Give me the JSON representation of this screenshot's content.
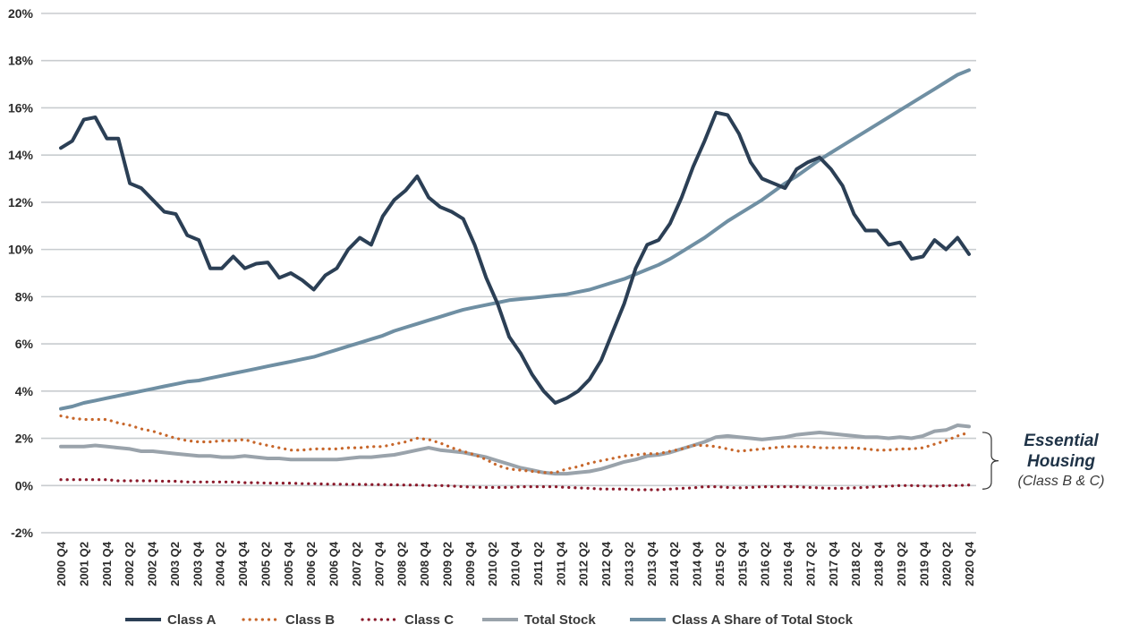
{
  "chart_data": {
    "type": "line",
    "title": "",
    "xlabel": "",
    "ylabel": "",
    "ylim": [
      -2,
      20
    ],
    "y_ticks": [
      -2,
      0,
      2,
      4,
      6,
      8,
      10,
      12,
      14,
      16,
      18,
      20
    ],
    "y_tick_format": "percent",
    "grid": true,
    "legend_position": "bottom",
    "x_tick_labels": [
      "2000 Q4",
      "2001 Q2",
      "2001 Q4",
      "2002 Q2",
      "2002 Q4",
      "2003 Q2",
      "2003 Q4",
      "2004 Q2",
      "2004 Q4",
      "2005 Q2",
      "2005 Q4",
      "2006 Q2",
      "2006 Q4",
      "2007 Q2",
      "2007 Q4",
      "2008 Q2",
      "2008 Q4",
      "2009 Q2",
      "2009 Q4",
      "2010 Q2",
      "2010 Q4",
      "2011 Q2",
      "2011 Q4",
      "2012 Q2",
      "2012 Q4",
      "2013 Q2",
      "2013 Q4",
      "2014 Q2",
      "2014 Q4",
      "2015 Q2",
      "2015 Q4",
      "2016 Q2",
      "2016 Q4",
      "2017 Q2",
      "2017 Q4",
      "2018 Q2",
      "2018 Q4",
      "2019 Q2",
      "2019 Q4",
      "2020 Q2",
      "2020 Q4"
    ],
    "series": [
      {
        "name": "Class A",
        "color": "#2b3f55",
        "style": "solid",
        "values": [
          14.3,
          14.6,
          15.5,
          15.6,
          14.7,
          14.7,
          12.8,
          12.6,
          12.1,
          11.6,
          11.5,
          10.6,
          10.4,
          9.2,
          9.2,
          9.7,
          9.2,
          9.4,
          9.45,
          8.8,
          9.0,
          8.7,
          8.3,
          8.9,
          9.2,
          10.0,
          10.5,
          10.2,
          11.4,
          12.1,
          12.5,
          13.1,
          12.2,
          11.8,
          11.6,
          11.3,
          10.2,
          8.8,
          7.7,
          6.3,
          5.6,
          4.7,
          4.0,
          3.5,
          3.7,
          4.0,
          4.5,
          5.3,
          6.5,
          7.7,
          9.2,
          10.2,
          10.4,
          11.1,
          12.2,
          13.5,
          14.6,
          15.8,
          15.7,
          14.9,
          13.7,
          13.0,
          12.8,
          12.6,
          13.4,
          13.7,
          13.9,
          13.4,
          12.7,
          11.5,
          10.8,
          10.8,
          10.2,
          10.3,
          9.6,
          9.7,
          10.4,
          10.0,
          10.5,
          9.8
        ]
      },
      {
        "name": "Class B",
        "color": "#c7662a",
        "style": "dotted",
        "values": [
          2.95,
          2.85,
          2.8,
          2.8,
          2.8,
          2.65,
          2.55,
          2.4,
          2.3,
          2.15,
          2.0,
          1.9,
          1.85,
          1.85,
          1.9,
          1.9,
          1.95,
          1.8,
          1.7,
          1.6,
          1.5,
          1.5,
          1.55,
          1.55,
          1.55,
          1.6,
          1.6,
          1.65,
          1.65,
          1.75,
          1.85,
          2.0,
          1.95,
          1.8,
          1.6,
          1.45,
          1.3,
          1.1,
          0.85,
          0.7,
          0.65,
          0.6,
          0.55,
          0.55,
          0.7,
          0.8,
          0.95,
          1.05,
          1.15,
          1.25,
          1.3,
          1.35,
          1.35,
          1.45,
          1.55,
          1.7,
          1.7,
          1.65,
          1.55,
          1.45,
          1.5,
          1.55,
          1.6,
          1.65,
          1.65,
          1.65,
          1.6,
          1.6,
          1.6,
          1.6,
          1.55,
          1.5,
          1.5,
          1.55,
          1.55,
          1.6,
          1.75,
          1.9,
          2.1,
          2.25
        ]
      },
      {
        "name": "Class C",
        "color": "#8b1a2b",
        "style": "dotted",
        "values": [
          0.25,
          0.25,
          0.25,
          0.25,
          0.25,
          0.2,
          0.2,
          0.2,
          0.2,
          0.18,
          0.18,
          0.15,
          0.15,
          0.15,
          0.15,
          0.15,
          0.12,
          0.12,
          0.1,
          0.1,
          0.1,
          0.08,
          0.08,
          0.06,
          0.06,
          0.05,
          0.05,
          0.04,
          0.04,
          0.03,
          0.02,
          0.02,
          0.0,
          0.0,
          -0.02,
          -0.05,
          -0.07,
          -0.08,
          -0.08,
          -0.08,
          -0.05,
          -0.05,
          -0.05,
          -0.05,
          -0.08,
          -0.1,
          -0.12,
          -0.15,
          -0.15,
          -0.15,
          -0.18,
          -0.18,
          -0.18,
          -0.15,
          -0.12,
          -0.1,
          -0.05,
          -0.05,
          -0.08,
          -0.1,
          -0.08,
          -0.05,
          -0.05,
          -0.05,
          -0.05,
          -0.08,
          -0.1,
          -0.12,
          -0.12,
          -0.1,
          -0.08,
          -0.05,
          -0.03,
          0.0,
          0.0,
          -0.02,
          -0.03,
          0.0,
          0.0,
          0.02
        ]
      },
      {
        "name": "Total Stock",
        "color": "#9aa3ab",
        "style": "solid",
        "values": [
          1.65,
          1.65,
          1.65,
          1.7,
          1.65,
          1.6,
          1.55,
          1.45,
          1.45,
          1.4,
          1.35,
          1.3,
          1.25,
          1.25,
          1.2,
          1.2,
          1.25,
          1.2,
          1.15,
          1.15,
          1.1,
          1.1,
          1.1,
          1.1,
          1.1,
          1.15,
          1.2,
          1.2,
          1.25,
          1.3,
          1.4,
          1.5,
          1.6,
          1.5,
          1.45,
          1.4,
          1.3,
          1.2,
          1.05,
          0.9,
          0.75,
          0.65,
          0.55,
          0.5,
          0.5,
          0.55,
          0.6,
          0.7,
          0.85,
          1.0,
          1.1,
          1.25,
          1.3,
          1.4,
          1.55,
          1.7,
          1.85,
          2.05,
          2.1,
          2.05,
          2.0,
          1.95,
          2.0,
          2.05,
          2.15,
          2.2,
          2.25,
          2.2,
          2.15,
          2.1,
          2.05,
          2.05,
          2.0,
          2.05,
          2.0,
          2.1,
          2.3,
          2.35,
          2.55,
          2.5
        ]
      },
      {
        "name": "Class A Share of Total Stock",
        "color": "#6f8fa3",
        "style": "solid",
        "values": [
          3.25,
          3.35,
          3.5,
          3.6,
          3.7,
          3.8,
          3.9,
          4.0,
          4.1,
          4.2,
          4.3,
          4.4,
          4.45,
          4.55,
          4.65,
          4.75,
          4.85,
          4.95,
          5.05,
          5.15,
          5.25,
          5.35,
          5.45,
          5.6,
          5.75,
          5.9,
          6.05,
          6.2,
          6.35,
          6.55,
          6.7,
          6.85,
          7.0,
          7.15,
          7.3,
          7.45,
          7.55,
          7.65,
          7.75,
          7.85,
          7.9,
          7.95,
          8.0,
          8.05,
          8.1,
          8.2,
          8.3,
          8.45,
          8.6,
          8.75,
          8.95,
          9.15,
          9.35,
          9.6,
          9.9,
          10.2,
          10.5,
          10.85,
          11.2,
          11.5,
          11.8,
          12.1,
          12.45,
          12.8,
          13.1,
          13.45,
          13.8,
          14.1,
          14.4,
          14.7,
          15.0,
          15.3,
          15.6,
          15.9,
          16.2,
          16.5,
          16.8,
          17.1,
          17.4,
          17.6
        ]
      }
    ],
    "annotation": {
      "title_line1": "Essential",
      "title_line2": "Housing",
      "subtitle": "(Class B & C)"
    }
  }
}
